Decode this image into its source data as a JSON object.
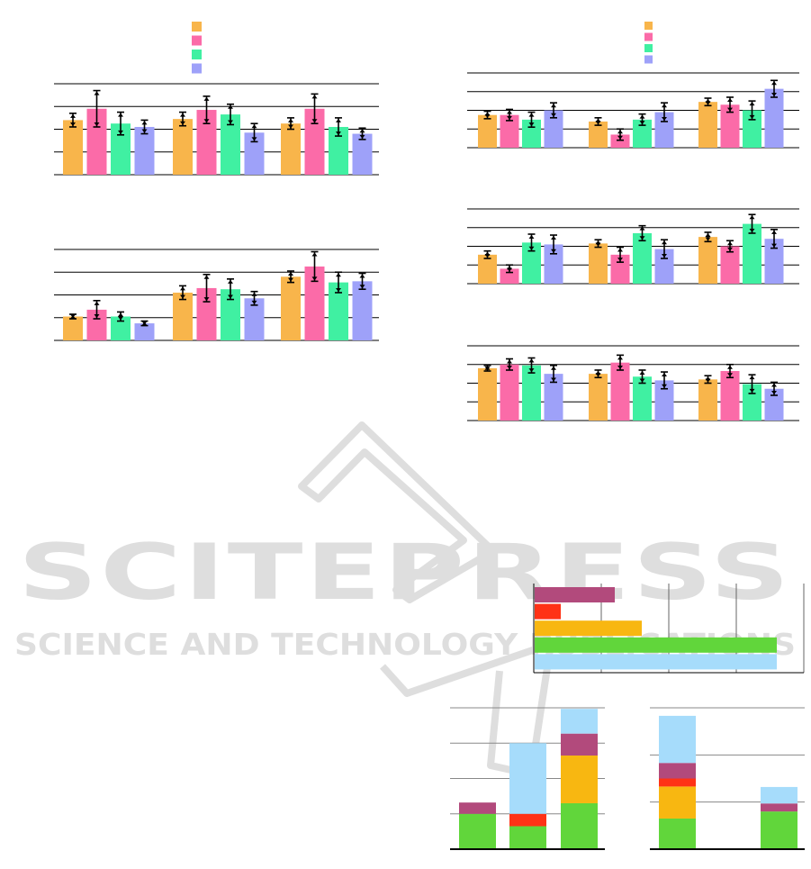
{
  "colors": {
    "orange": "#f8b54b",
    "pink": "#fb6ba8",
    "mint": "#40f0a2",
    "lavender": "#9ea1f9",
    "berry": "#b24a7c",
    "red": "#ff3216",
    "gold": "#f8b711",
    "green": "#61d63b",
    "skyblue": "#a6dcfb",
    "grid": "#000000",
    "watermark": "#dedede"
  },
  "watermark": {
    "title": "SCITEPRESS",
    "subtitle": "SCIENCE AND TECHNOLOGY PUBLICATIONS",
    "logo_icon": "book-icon"
  },
  "chart_data": [
    {
      "id": "left-top",
      "type": "bar",
      "error_bars": true,
      "grid": true,
      "legend_position": "top-center",
      "ylim": [
        0,
        4
      ],
      "categories": [
        "",
        "",
        ""
      ],
      "series": [
        {
          "color": "orange",
          "values": [
            2.4,
            2.45,
            2.25
          ],
          "errors": [
            0.3,
            0.3,
            0.25
          ]
        },
        {
          "color": "pink",
          "values": [
            2.9,
            2.85,
            2.9
          ],
          "errors": [
            0.8,
            0.6,
            0.65
          ]
        },
        {
          "color": "mint",
          "values": [
            2.25,
            2.65,
            2.1
          ],
          "errors": [
            0.5,
            0.45,
            0.4
          ]
        },
        {
          "color": "lavender",
          "values": [
            2.1,
            1.85,
            1.8
          ],
          "errors": [
            0.3,
            0.4,
            0.25
          ]
        }
      ]
    },
    {
      "id": "left-bottom",
      "type": "bar",
      "error_bars": true,
      "grid": true,
      "ylim": [
        0,
        4
      ],
      "categories": [
        "",
        "",
        ""
      ],
      "series": [
        {
          "color": "orange",
          "values": [
            1.05,
            2.1,
            2.8
          ],
          "errors": [
            0.1,
            0.3,
            0.25
          ]
        },
        {
          "color": "pink",
          "values": [
            1.35,
            2.3,
            3.25
          ],
          "errors": [
            0.4,
            0.6,
            0.65
          ]
        },
        {
          "color": "mint",
          "values": [
            1.05,
            2.25,
            2.55
          ],
          "errors": [
            0.2,
            0.45,
            0.45
          ]
        },
        {
          "color": "lavender",
          "values": [
            0.75,
            1.85,
            2.6
          ],
          "errors": [
            0.1,
            0.3,
            0.35
          ]
        }
      ]
    },
    {
      "id": "right-1",
      "type": "bar",
      "error_bars": true,
      "grid": true,
      "legend_position": "top-center",
      "ylim": [
        0,
        4
      ],
      "categories": [
        "",
        "",
        ""
      ],
      "series": [
        {
          "color": "orange",
          "values": [
            1.75,
            1.4,
            2.45
          ],
          "errors": [
            0.2,
            0.2,
            0.2
          ]
        },
        {
          "color": "pink",
          "values": [
            1.75,
            0.7,
            2.3
          ],
          "errors": [
            0.3,
            0.3,
            0.4
          ]
        },
        {
          "color": "mint",
          "values": [
            1.5,
            1.5,
            2.0
          ],
          "errors": [
            0.4,
            0.3,
            0.5
          ]
        },
        {
          "color": "lavender",
          "values": [
            2.0,
            1.9,
            3.15
          ],
          "errors": [
            0.4,
            0.5,
            0.45
          ]
        }
      ]
    },
    {
      "id": "right-2",
      "type": "bar",
      "error_bars": true,
      "grid": true,
      "ylim": [
        0,
        4
      ],
      "categories": [
        "",
        "",
        ""
      ],
      "series": [
        {
          "color": "orange",
          "values": [
            1.55,
            2.15,
            2.5
          ],
          "errors": [
            0.2,
            0.2,
            0.25
          ]
        },
        {
          "color": "pink",
          "values": [
            0.8,
            1.55,
            2.0
          ],
          "errors": [
            0.2,
            0.4,
            0.3
          ]
        },
        {
          "color": "mint",
          "values": [
            2.2,
            2.7,
            3.2
          ],
          "errors": [
            0.45,
            0.4,
            0.5
          ]
        },
        {
          "color": "lavender",
          "values": [
            2.1,
            1.85,
            2.4
          ],
          "errors": [
            0.5,
            0.5,
            0.5
          ]
        }
      ]
    },
    {
      "id": "right-3",
      "type": "bar",
      "error_bars": true,
      "grid": true,
      "ylim": [
        0,
        4
      ],
      "categories": [
        "",
        "",
        ""
      ],
      "series": [
        {
          "color": "orange",
          "values": [
            2.8,
            2.5,
            2.2
          ],
          "errors": [
            0.15,
            0.2,
            0.2
          ]
        },
        {
          "color": "pink",
          "values": [
            3.0,
            3.1,
            2.65
          ],
          "errors": [
            0.3,
            0.4,
            0.35
          ]
        },
        {
          "color": "mint",
          "values": [
            2.95,
            2.35,
            1.95
          ],
          "errors": [
            0.4,
            0.35,
            0.5
          ]
        },
        {
          "color": "lavender",
          "values": [
            2.5,
            2.15,
            1.7
          ],
          "errors": [
            0.45,
            0.45,
            0.35
          ]
        }
      ]
    },
    {
      "id": "horizontal",
      "type": "bar",
      "orientation": "horizontal",
      "grid": true,
      "xlim": [
        0,
        4
      ],
      "categories": [
        "",
        "",
        "",
        "",
        ""
      ],
      "series": [
        {
          "values": [
            1.2,
            0.4,
            1.6,
            3.6,
            3.6
          ],
          "colors": [
            "berry",
            "red",
            "gold",
            "green",
            "skyblue"
          ]
        }
      ]
    },
    {
      "id": "stacked-left",
      "type": "bar",
      "stacked": true,
      "grid": true,
      "ylim": [
        0,
        4
      ],
      "categories": [
        "",
        "",
        ""
      ],
      "series": [
        {
          "color": "green",
          "values": [
            1.0,
            0.65,
            1.3
          ]
        },
        {
          "color": "red",
          "values": [
            0.0,
            0.35,
            0.0
          ]
        },
        {
          "color": "gold",
          "values": [
            0.0,
            0.0,
            1.35
          ]
        },
        {
          "color": "berry",
          "values": [
            0.32,
            0.0,
            0.62
          ]
        },
        {
          "color": "skyblue",
          "values": [
            0.0,
            2.0,
            0.7
          ]
        }
      ]
    },
    {
      "id": "stacked-right",
      "type": "bar",
      "stacked": true,
      "grid": true,
      "ylim": [
        0,
        3
      ],
      "categories": [
        "",
        ""
      ],
      "series": [
        {
          "color": "green",
          "values": [
            0.65,
            0.8
          ]
        },
        {
          "color": "gold",
          "values": [
            0.68,
            0.0
          ]
        },
        {
          "color": "red",
          "values": [
            0.17,
            0.0
          ]
        },
        {
          "color": "berry",
          "values": [
            0.33,
            0.17
          ]
        },
        {
          "color": "skyblue",
          "values": [
            1.0,
            0.35
          ]
        }
      ]
    }
  ]
}
